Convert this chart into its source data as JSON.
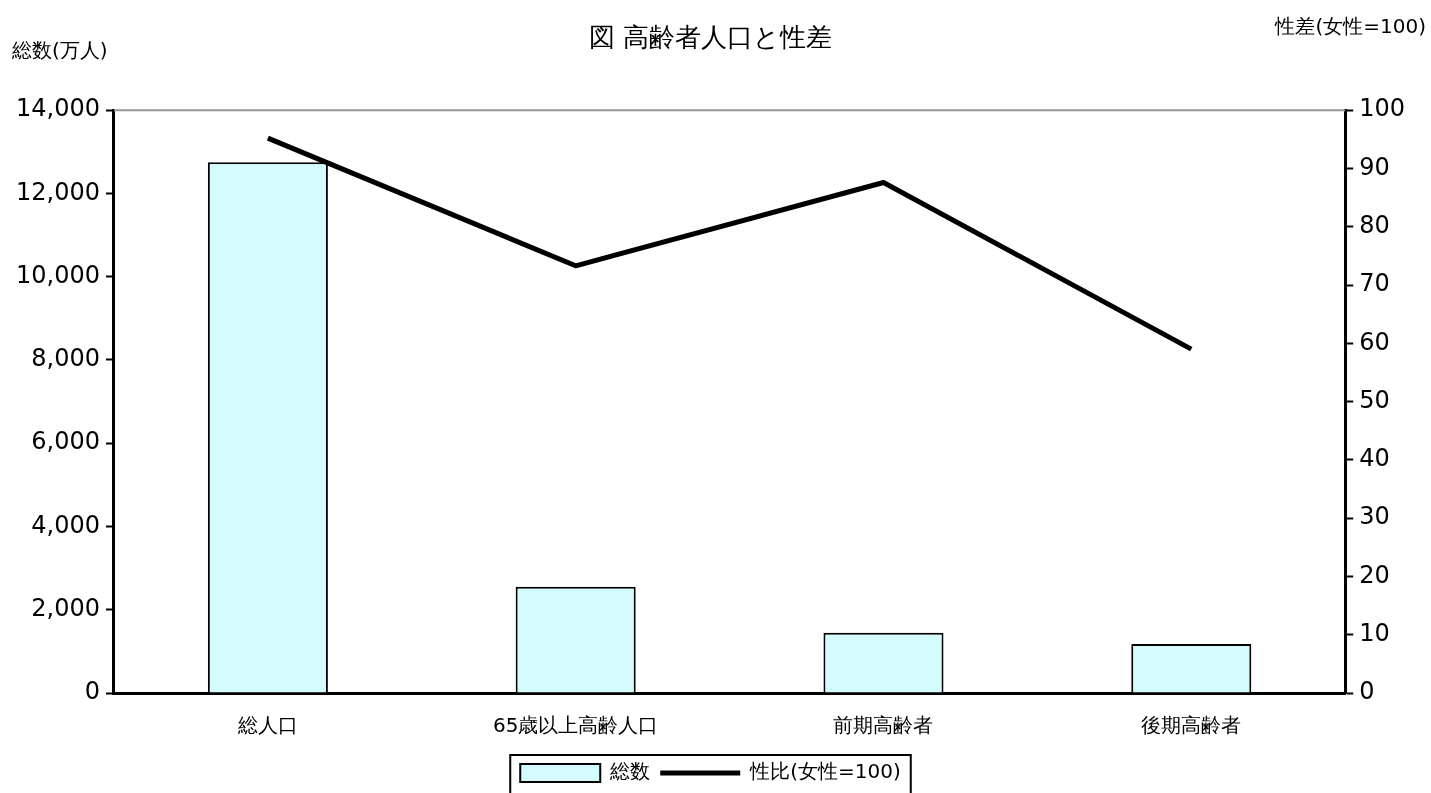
{
  "chart_data": {
    "type": "bar",
    "title": "図 高齢者人口と性差",
    "ylabel": "総数(万人)",
    "y2label": "性差(女性=100)",
    "categories": [
      "総人口",
      "65歳以上高齢人口",
      "前期高齢者",
      "後期高齢者"
    ],
    "series": [
      {
        "name": "総数",
        "color": "#d4fcfc",
        "values": [
          12750,
          2550,
          1450,
          1180
        ]
      },
      {
        "name": "性比(女性=100)",
        "type": "line",
        "axis": "y2",
        "color": "#000000",
        "values": [
          95.2,
          73.3,
          87.6,
          59.0
        ]
      }
    ],
    "ylim": [
      0,
      14000
    ],
    "yticks": [
      0,
      {
        "value": 2000,
        "label": "2,000"
      },
      {
        "value": 4000,
        "label": "4,000"
      },
      {
        "value": 6000,
        "label": "6,000"
      },
      {
        "value": 8000,
        "label": "8,000"
      },
      {
        "value": 10000,
        "label": "10,000"
      },
      {
        "value": 12000,
        "label": "12,000"
      },
      {
        "value": 14000,
        "label": "14,000"
      }
    ],
    "y2lim": [
      0,
      100
    ],
    "y2ticks": [
      0,
      10,
      20,
      30,
      40,
      50,
      60,
      70,
      80,
      90,
      100
    ],
    "grid": false,
    "legend": "bottom",
    "marker": "none",
    "line_style": "solid"
  }
}
